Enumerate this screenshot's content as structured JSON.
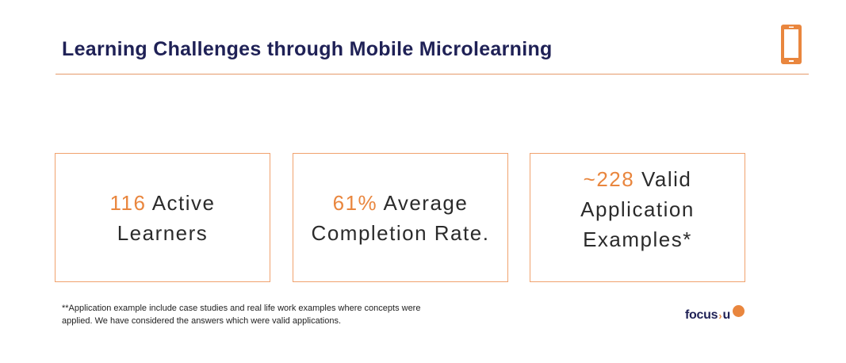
{
  "slide": {
    "title": "Learning Challenges through Mobile Microlearning"
  },
  "stats": [
    {
      "value": "116",
      "label": "Active",
      "label2": "Learners"
    },
    {
      "value": "61%",
      "label": "Average",
      "label2": "Completion Rate."
    },
    {
      "value": "~228",
      "label": "Valid",
      "label2": "Application",
      "label3": "Examples*"
    }
  ],
  "footnote": {
    "text": "**Application example include case studies and real life work examples where concepts were applied. We have considered the answers which were valid applications."
  },
  "logo": {
    "text": "focus",
    "arrow": "›",
    "suffix": "u"
  },
  "colors": {
    "accent": "#e9863e",
    "title": "#1f2156",
    "card_border": "#f0a26e"
  },
  "icons": {
    "header": "mobile-phone-icon",
    "logo_mark": "focusu-dot-icon"
  }
}
